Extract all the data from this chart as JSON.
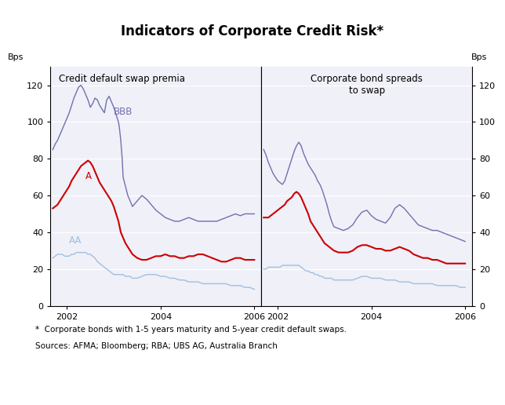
{
  "title": "Indicators of Corporate Credit Risk*",
  "left_title": "Credit default swap premia",
  "right_title": "Corporate bond spreads\nto swap",
  "ylabel_left": "Bps",
  "ylabel_right": "Bps",
  "footnote1": "*  Corporate bonds with 1-5 years maturity and 5-year credit default swaps.",
  "footnote2": "Sources: AFMA; Bloomberg; RBA; UBS AG, Australia Branch",
  "ylim": [
    0,
    130
  ],
  "yticks": [
    0,
    20,
    40,
    60,
    80,
    100,
    120
  ],
  "color_BBB": "#7070b0",
  "color_A": "#cc0000",
  "color_AA": "#a0c0e0",
  "panel_bg": "#f0f0f8",
  "left_panel": {
    "BBB": {
      "x": [
        2001.7,
        2001.75,
        2001.8,
        2001.85,
        2001.9,
        2001.95,
        2002.0,
        2002.05,
        2002.1,
        2002.15,
        2002.2,
        2002.25,
        2002.3,
        2002.35,
        2002.4,
        2002.45,
        2002.5,
        2002.55,
        2002.6,
        2002.65,
        2002.7,
        2002.75,
        2002.8,
        2002.85,
        2002.9,
        2002.95,
        2003.0,
        2003.05,
        2003.1,
        2003.12,
        2003.15,
        2003.18,
        2003.2,
        2003.25,
        2003.3,
        2003.35,
        2003.4,
        2003.5,
        2003.6,
        2003.7,
        2003.8,
        2003.9,
        2004.0,
        2004.1,
        2004.2,
        2004.3,
        2004.4,
        2004.5,
        2004.6,
        2004.7,
        2004.8,
        2004.9,
        2005.0,
        2005.1,
        2005.2,
        2005.3,
        2005.4,
        2005.5,
        2005.6,
        2005.7,
        2005.8,
        2005.9,
        2006.0
      ],
      "y": [
        85,
        88,
        90,
        93,
        96,
        99,
        102,
        105,
        109,
        113,
        116,
        119,
        120,
        118,
        115,
        112,
        108,
        110,
        113,
        112,
        109,
        107,
        105,
        112,
        114,
        111,
        108,
        104,
        100,
        97,
        90,
        80,
        70,
        65,
        60,
        57,
        54,
        57,
        60,
        58,
        55,
        52,
        50,
        48,
        47,
        46,
        46,
        47,
        48,
        47,
        46,
        46,
        46,
        46,
        46,
        47,
        48,
        49,
        50,
        49,
        50,
        50,
        50
      ]
    },
    "A": {
      "x": [
        2001.7,
        2001.75,
        2001.8,
        2001.85,
        2001.9,
        2001.95,
        2002.0,
        2002.05,
        2002.1,
        2002.15,
        2002.2,
        2002.25,
        2002.3,
        2002.35,
        2002.4,
        2002.45,
        2002.5,
        2002.55,
        2002.6,
        2002.65,
        2002.7,
        2002.75,
        2002.8,
        2002.85,
        2002.9,
        2002.95,
        2003.0,
        2003.05,
        2003.1,
        2003.15,
        2003.2,
        2003.25,
        2003.3,
        2003.35,
        2003.4,
        2003.5,
        2003.6,
        2003.7,
        2003.8,
        2003.9,
        2004.0,
        2004.1,
        2004.2,
        2004.3,
        2004.4,
        2004.5,
        2004.6,
        2004.7,
        2004.8,
        2004.9,
        2005.0,
        2005.1,
        2005.2,
        2005.3,
        2005.4,
        2005.5,
        2005.6,
        2005.7,
        2005.8,
        2005.9,
        2006.0
      ],
      "y": [
        53,
        54,
        55,
        57,
        59,
        61,
        63,
        65,
        68,
        70,
        72,
        74,
        76,
        77,
        78,
        79,
        78,
        76,
        73,
        70,
        67,
        65,
        63,
        61,
        59,
        57,
        54,
        50,
        46,
        40,
        37,
        34,
        32,
        30,
        28,
        26,
        25,
        25,
        26,
        27,
        27,
        28,
        27,
        27,
        26,
        26,
        27,
        27,
        28,
        28,
        27,
        26,
        25,
        24,
        24,
        25,
        26,
        26,
        25,
        25,
        25
      ]
    },
    "AA": {
      "x": [
        2001.7,
        2001.75,
        2001.8,
        2001.85,
        2001.9,
        2001.95,
        2002.0,
        2002.05,
        2002.1,
        2002.15,
        2002.2,
        2002.25,
        2002.3,
        2002.35,
        2002.4,
        2002.45,
        2002.5,
        2002.55,
        2002.6,
        2002.65,
        2002.7,
        2002.75,
        2002.8,
        2002.85,
        2002.9,
        2002.95,
        2003.0,
        2003.05,
        2003.1,
        2003.15,
        2003.2,
        2003.25,
        2003.3,
        2003.35,
        2003.4,
        2003.5,
        2003.6,
        2003.7,
        2003.8,
        2003.9,
        2004.0,
        2004.1,
        2004.2,
        2004.3,
        2004.4,
        2004.5,
        2004.6,
        2004.7,
        2004.8,
        2004.9,
        2005.0,
        2005.1,
        2005.2,
        2005.3,
        2005.4,
        2005.5,
        2005.6,
        2005.7,
        2005.8,
        2005.9,
        2006.0
      ],
      "y": [
        26,
        27,
        28,
        28,
        28,
        27,
        27,
        27,
        28,
        28,
        29,
        29,
        29,
        29,
        29,
        28,
        28,
        27,
        26,
        24,
        23,
        22,
        21,
        20,
        19,
        18,
        17,
        17,
        17,
        17,
        17,
        16,
        16,
        16,
        15,
        15,
        16,
        17,
        17,
        17,
        16,
        16,
        15,
        15,
        14,
        14,
        13,
        13,
        13,
        12,
        12,
        12,
        12,
        12,
        12,
        11,
        11,
        11,
        10,
        10,
        9
      ]
    }
  },
  "right_panel": {
    "BBB": {
      "x": [
        2001.7,
        2001.75,
        2001.8,
        2001.85,
        2001.9,
        2001.95,
        2002.0,
        2002.05,
        2002.1,
        2002.15,
        2002.2,
        2002.25,
        2002.3,
        2002.35,
        2002.4,
        2002.45,
        2002.5,
        2002.55,
        2002.6,
        2002.65,
        2002.7,
        2002.75,
        2002.8,
        2002.85,
        2002.9,
        2002.95,
        2003.0,
        2003.05,
        2003.1,
        2003.15,
        2003.2,
        2003.3,
        2003.4,
        2003.5,
        2003.6,
        2003.7,
        2003.8,
        2003.9,
        2004.0,
        2004.1,
        2004.2,
        2004.3,
        2004.4,
        2004.5,
        2004.6,
        2004.7,
        2004.8,
        2004.9,
        2005.0,
        2005.1,
        2005.2,
        2005.3,
        2005.4,
        2005.5,
        2005.6,
        2005.7,
        2005.8,
        2005.9,
        2006.0
      ],
      "y": [
        85,
        82,
        78,
        75,
        72,
        70,
        68,
        67,
        66,
        68,
        72,
        76,
        80,
        84,
        87,
        89,
        87,
        83,
        80,
        77,
        75,
        73,
        71,
        68,
        66,
        63,
        59,
        55,
        50,
        46,
        43,
        42,
        41,
        42,
        44,
        48,
        51,
        52,
        49,
        47,
        46,
        45,
        48,
        53,
        55,
        53,
        50,
        47,
        44,
        43,
        42,
        41,
        41,
        40,
        39,
        38,
        37,
        36,
        35
      ]
    },
    "A": {
      "x": [
        2001.7,
        2001.75,
        2001.8,
        2001.85,
        2001.9,
        2001.95,
        2002.0,
        2002.05,
        2002.1,
        2002.15,
        2002.2,
        2002.25,
        2002.3,
        2002.35,
        2002.4,
        2002.45,
        2002.5,
        2002.55,
        2002.6,
        2002.65,
        2002.7,
        2002.75,
        2002.8,
        2002.85,
        2002.9,
        2002.95,
        2003.0,
        2003.05,
        2003.1,
        2003.15,
        2003.2,
        2003.3,
        2003.4,
        2003.5,
        2003.6,
        2003.7,
        2003.8,
        2003.9,
        2004.0,
        2004.1,
        2004.2,
        2004.3,
        2004.4,
        2004.5,
        2004.6,
        2004.7,
        2004.8,
        2004.9,
        2005.0,
        2005.1,
        2005.2,
        2005.3,
        2005.4,
        2005.5,
        2005.6,
        2005.7,
        2005.8,
        2005.9,
        2006.0
      ],
      "y": [
        48,
        48,
        48,
        49,
        50,
        51,
        52,
        53,
        54,
        55,
        57,
        58,
        59,
        61,
        62,
        61,
        59,
        56,
        53,
        50,
        46,
        44,
        42,
        40,
        38,
        36,
        34,
        33,
        32,
        31,
        30,
        29,
        29,
        29,
        30,
        32,
        33,
        33,
        32,
        31,
        31,
        30,
        30,
        31,
        32,
        31,
        30,
        28,
        27,
        26,
        26,
        25,
        25,
        24,
        23,
        23,
        23,
        23,
        23
      ]
    },
    "AA": {
      "x": [
        2001.7,
        2001.75,
        2001.8,
        2001.85,
        2001.9,
        2001.95,
        2002.0,
        2002.05,
        2002.1,
        2002.15,
        2002.2,
        2002.25,
        2002.3,
        2002.35,
        2002.4,
        2002.45,
        2002.5,
        2002.55,
        2002.6,
        2002.65,
        2002.7,
        2002.75,
        2002.8,
        2002.85,
        2002.9,
        2002.95,
        2003.0,
        2003.05,
        2003.1,
        2003.15,
        2003.2,
        2003.3,
        2003.4,
        2003.5,
        2003.6,
        2003.7,
        2003.8,
        2003.9,
        2004.0,
        2004.1,
        2004.2,
        2004.3,
        2004.4,
        2004.5,
        2004.6,
        2004.7,
        2004.8,
        2004.9,
        2005.0,
        2005.1,
        2005.2,
        2005.3,
        2005.4,
        2005.5,
        2005.6,
        2005.7,
        2005.8,
        2005.9,
        2006.0
      ],
      "y": [
        20,
        20,
        21,
        21,
        21,
        21,
        21,
        21,
        22,
        22,
        22,
        22,
        22,
        22,
        22,
        22,
        21,
        20,
        19,
        19,
        18,
        18,
        17,
        17,
        16,
        16,
        15,
        15,
        15,
        15,
        14,
        14,
        14,
        14,
        14,
        15,
        16,
        16,
        15,
        15,
        15,
        14,
        14,
        14,
        13,
        13,
        13,
        12,
        12,
        12,
        12,
        12,
        11,
        11,
        11,
        11,
        11,
        10,
        10
      ]
    }
  }
}
